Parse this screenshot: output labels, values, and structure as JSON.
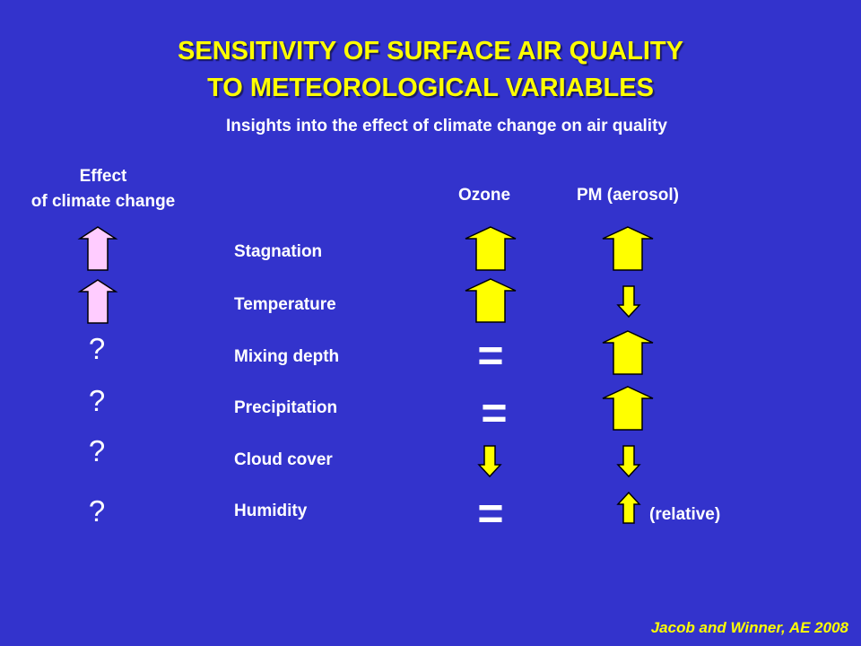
{
  "title_line1": "SENSITIVITY OF SURFACE AIR QUALITY",
  "title_line2": "TO METEOROLOGICAL VARIABLES",
  "subtitle": "Insights into the effect of climate change on air quality",
  "headers": {
    "effect_line1": "Effect",
    "effect_line2": "of climate change",
    "ozone": "Ozone",
    "pm": "PM (aerosol)"
  },
  "rows": [
    {
      "label": "Stagnation",
      "effect": "up",
      "ozone": "up",
      "pm": "up"
    },
    {
      "label": "Temperature",
      "effect": "up",
      "ozone": "up",
      "pm": "down-small"
    },
    {
      "label": "Mixing depth",
      "effect": "?",
      "ozone": "=",
      "pm": "up"
    },
    {
      "label": "Precipitation",
      "effect": "?",
      "ozone": "=",
      "pm": "up"
    },
    {
      "label": "Cloud cover",
      "effect": "?",
      "ozone": "down-small",
      "pm": "down-small"
    },
    {
      "label": "Humidity",
      "effect": "?",
      "ozone": "=",
      "pm": "up-small"
    }
  ],
  "symbols": {
    "question": "?",
    "equal": "="
  },
  "humidity_note": "(relative)",
  "credit": "Jacob and Winner, AE 2008",
  "colors": {
    "background": "#3333cc",
    "title": "#ffff00",
    "effect_arrow": "#ffccff",
    "variable_arrow": "#ffff00",
    "outline": "#000000"
  }
}
